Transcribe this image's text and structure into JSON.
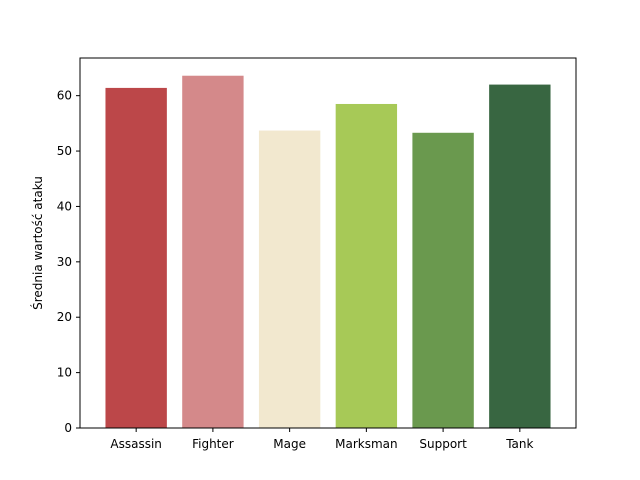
{
  "chart_data": {
    "type": "bar",
    "title": "",
    "xlabel": "",
    "ylabel": "Średnia wartość ataku",
    "categories": [
      "Assassin",
      "Fighter",
      "Mage",
      "Marksman",
      "Support",
      "Tank"
    ],
    "values": [
      61.4,
      63.6,
      53.7,
      58.5,
      53.3,
      62.0
    ],
    "colors": [
      "#bc4749",
      "#d4898a",
      "#f2e8cf",
      "#a7c957",
      "#6a994e",
      "#386641"
    ],
    "ylim": [
      0,
      66.8
    ],
    "yticks": [
      0,
      10,
      20,
      30,
      40,
      50,
      60
    ],
    "grid": false,
    "legend": "none"
  }
}
